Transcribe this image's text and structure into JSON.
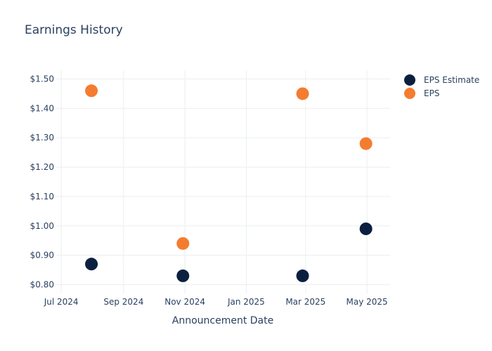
{
  "chart_data": {
    "type": "scatter",
    "title": "Earnings History",
    "xlabel": "Announcement Date",
    "ylabel": "",
    "x_ticks": [
      "Jul 2024",
      "Sep 2024",
      "Nov 2024",
      "Jan 2025",
      "Mar 2025",
      "May 2025"
    ],
    "y_ticks": [
      "$0.80",
      "$0.90",
      "$1.00",
      "$1.10",
      "$1.20",
      "$1.30",
      "$1.40",
      "$1.50"
    ],
    "xlim": [
      "2024-06-26",
      "2025-05-24"
    ],
    "ylim": [
      0.77,
      1.53
    ],
    "grid": true,
    "legend_position": "right",
    "series": [
      {
        "name": "EPS Estimate",
        "color": "#0b1f3f",
        "points": [
          {
            "x": "2024-07-31",
            "y": 0.87
          },
          {
            "x": "2024-10-30",
            "y": 0.83
          },
          {
            "x": "2025-02-26",
            "y": 0.83
          },
          {
            "x": "2025-04-30",
            "y": 0.99
          }
        ]
      },
      {
        "name": "EPS",
        "color": "#f47c30",
        "points": [
          {
            "x": "2024-07-31",
            "y": 1.46
          },
          {
            "x": "2024-10-30",
            "y": 0.94
          },
          {
            "x": "2025-02-26",
            "y": 1.45
          },
          {
            "x": "2025-04-30",
            "y": 1.28
          }
        ]
      }
    ]
  }
}
